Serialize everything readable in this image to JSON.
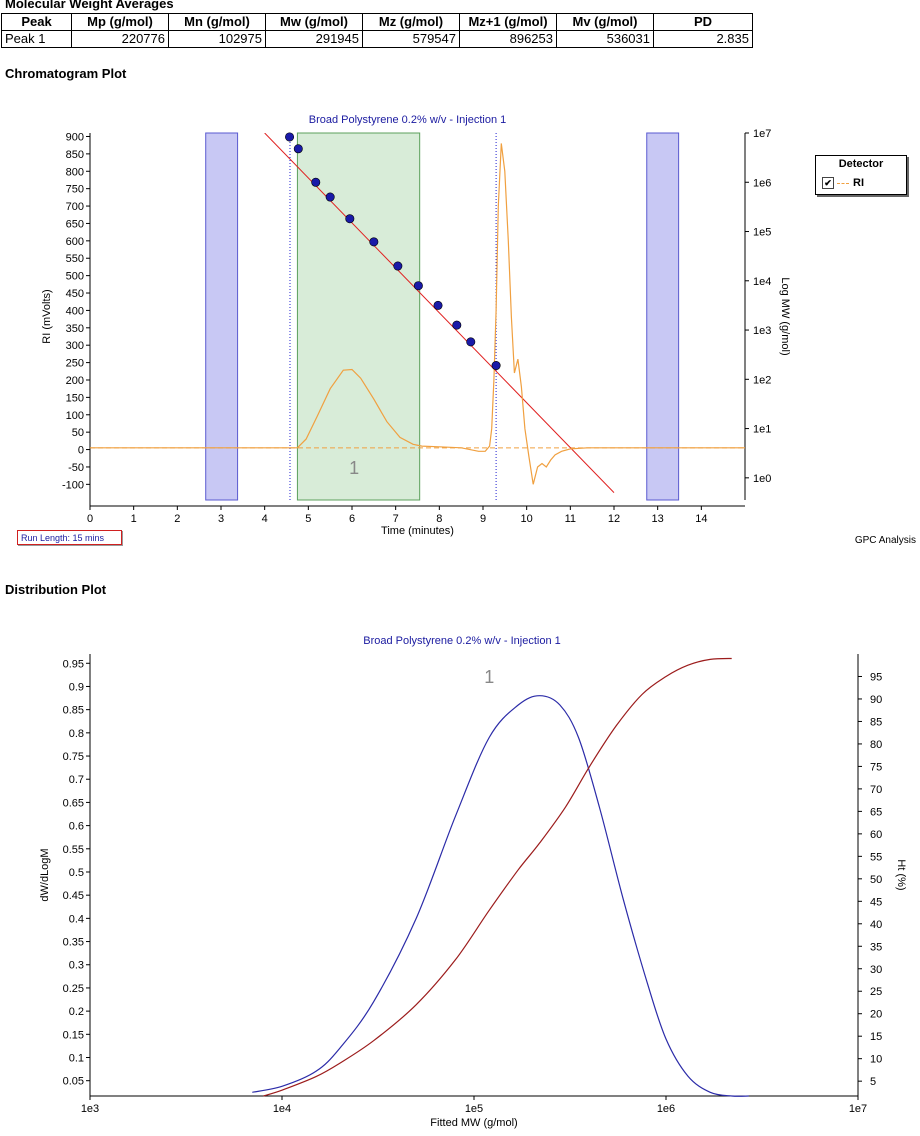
{
  "mw_averages": {
    "title": "Molecular Weight Averages",
    "headers": [
      "Peak",
      "Mp (g/mol)",
      "Mn (g/mol)",
      "Mw (g/mol)",
      "Mz (g/mol)",
      "Mz+1 (g/mol)",
      "Mv (g/mol)",
      "PD"
    ],
    "rows": [
      [
        "Peak 1",
        "220776",
        "102975",
        "291945",
        "579547",
        "896253",
        "536031",
        "2.835"
      ]
    ]
  },
  "chromatogram": {
    "section_title": "Chromatogram Plot",
    "run_length": "Run Length: 15 mins",
    "analysis_label": "GPC Analysis",
    "legend": {
      "title": "Detector",
      "items": [
        {
          "name": "RI",
          "checked": true,
          "color": "#f0a040"
        }
      ]
    }
  },
  "distribution": {
    "section_title": "Distribution Plot"
  },
  "chart_data": [
    {
      "type": "line",
      "title": "Broad Polystyrene 0.2% w/v - Injection 1",
      "xlabel": "Time (minutes)",
      "ylabel": "RI (mVolts)",
      "y2label": "Log MW (g/mol)",
      "xlim": [
        0,
        15
      ],
      "ylim": [
        -145,
        910
      ],
      "x_ticks": [
        0,
        1,
        2,
        3,
        4,
        5,
        6,
        7,
        8,
        9,
        10,
        11,
        12,
        13,
        14
      ],
      "y_ticks": [
        900,
        850,
        800,
        750,
        700,
        650,
        600,
        550,
        500,
        450,
        400,
        350,
        300,
        250,
        200,
        150,
        100,
        50,
        0,
        -50,
        -100
      ],
      "y2_log_range": [
        -0.45,
        7
      ],
      "y2_ticks": [
        "1e7",
        "1e6",
        "1e5",
        "1e4",
        "1e3",
        "1e2",
        "1e1",
        "1e0"
      ],
      "peak_label": "1",
      "baseline_regions": [
        [
          2.65,
          3.38
        ],
        [
          12.75,
          13.48
        ]
      ],
      "peak_region": [
        4.75,
        7.55
      ],
      "markers": [
        4.58,
        9.3
      ],
      "calibration_points": [
        {
          "x": 4.57,
          "logmw": 6.92
        },
        {
          "x": 4.77,
          "logmw": 6.68
        },
        {
          "x": 5.17,
          "logmw": 6.0
        },
        {
          "x": 5.5,
          "logmw": 5.7
        },
        {
          "x": 5.95,
          "logmw": 5.26
        },
        {
          "x": 6.5,
          "logmw": 4.79
        },
        {
          "x": 7.05,
          "logmw": 4.3
        },
        {
          "x": 7.52,
          "logmw": 3.9
        },
        {
          "x": 7.97,
          "logmw": 3.5
        },
        {
          "x": 8.4,
          "logmw": 3.1
        },
        {
          "x": 8.72,
          "logmw": 2.76
        },
        {
          "x": 9.3,
          "logmw": 2.28
        }
      ],
      "calibration_line": [
        [
          4.0,
          7.0
        ],
        [
          12.0,
          -0.3
        ]
      ],
      "series": [
        {
          "name": "RI",
          "color": "#f0a040",
          "x": [
            0,
            4.75,
            4.95,
            5.2,
            5.5,
            5.8,
            6.0,
            6.2,
            6.5,
            6.8,
            7.1,
            7.4,
            7.6,
            8.0,
            8.5,
            8.9,
            9.05,
            9.15,
            9.2,
            9.25,
            9.3,
            9.35,
            9.42,
            9.5,
            9.58,
            9.65,
            9.72,
            9.8,
            9.88,
            9.96,
            10.05,
            10.15,
            10.25,
            10.35,
            10.45,
            10.55,
            10.65,
            10.8,
            11.0,
            11.4,
            15
          ],
          "y": [
            5,
            5,
            30,
            95,
            175,
            228,
            230,
            205,
            145,
            80,
            35,
            15,
            10,
            8,
            5,
            -5,
            -5,
            10,
            60,
            200,
            400,
            700,
            880,
            800,
            600,
            380,
            220,
            260,
            180,
            60,
            -20,
            -100,
            -50,
            -40,
            -50,
            -30,
            -15,
            -5,
            2,
            5,
            5
          ]
        }
      ]
    },
    {
      "type": "line",
      "title": "Broad Polystyrene 0.2% w/v - Injection 1",
      "xlabel": "Fitted MW (g/mol)",
      "ylabel": "dW/dLogM",
      "y2label": "Ht (%)",
      "x_scale": "log",
      "xlim": [
        1000,
        10000000
      ],
      "x_ticks": [
        "1e3",
        "1e4",
        "1e5",
        "1e6",
        "1e7"
      ],
      "ylim": [
        0.017,
        0.97
      ],
      "y_ticks": [
        0.95,
        0.9,
        0.85,
        0.8,
        0.75,
        0.7,
        0.65,
        0.6,
        0.55,
        0.5,
        0.45,
        0.4,
        0.35,
        0.3,
        0.25,
        0.2,
        0.15,
        0.1,
        0.05
      ],
      "y2lim": [
        1.7,
        100
      ],
      "y2_ticks": [
        95,
        90,
        85,
        80,
        75,
        70,
        65,
        60,
        55,
        50,
        45,
        40,
        35,
        30,
        25,
        20,
        15,
        10,
        5
      ],
      "peak_label": "1",
      "series": [
        {
          "name": "dW/dLogM",
          "color": "#2b2ba8",
          "x": [
            7000,
            10000,
            15000,
            20000,
            30000,
            50000,
            80000,
            120000,
            170000,
            220000,
            280000,
            350000,
            450000,
            600000,
            800000,
            1000000,
            1300000,
            1700000,
            2200000,
            2700000
          ],
          "y": [
            0.025,
            0.038,
            0.07,
            0.12,
            0.22,
            0.4,
            0.62,
            0.79,
            0.86,
            0.88,
            0.86,
            0.79,
            0.64,
            0.44,
            0.26,
            0.14,
            0.06,
            0.025,
            0.008,
            0.003
          ]
        },
        {
          "name": "Ht (%)",
          "color": "#9c1c1c",
          "axis": "right",
          "x": [
            8000,
            10000,
            15000,
            20000,
            30000,
            50000,
            80000,
            120000,
            170000,
            220000,
            300000,
            400000,
            550000,
            750000,
            1000000,
            1300000,
            1700000,
            2200000
          ],
          "y": [
            1.5,
            3,
            6,
            9,
            14,
            22,
            32,
            43,
            52,
            58,
            66,
            75,
            84,
            91,
            95,
            97.5,
            98.8,
            99
          ]
        }
      ]
    }
  ]
}
